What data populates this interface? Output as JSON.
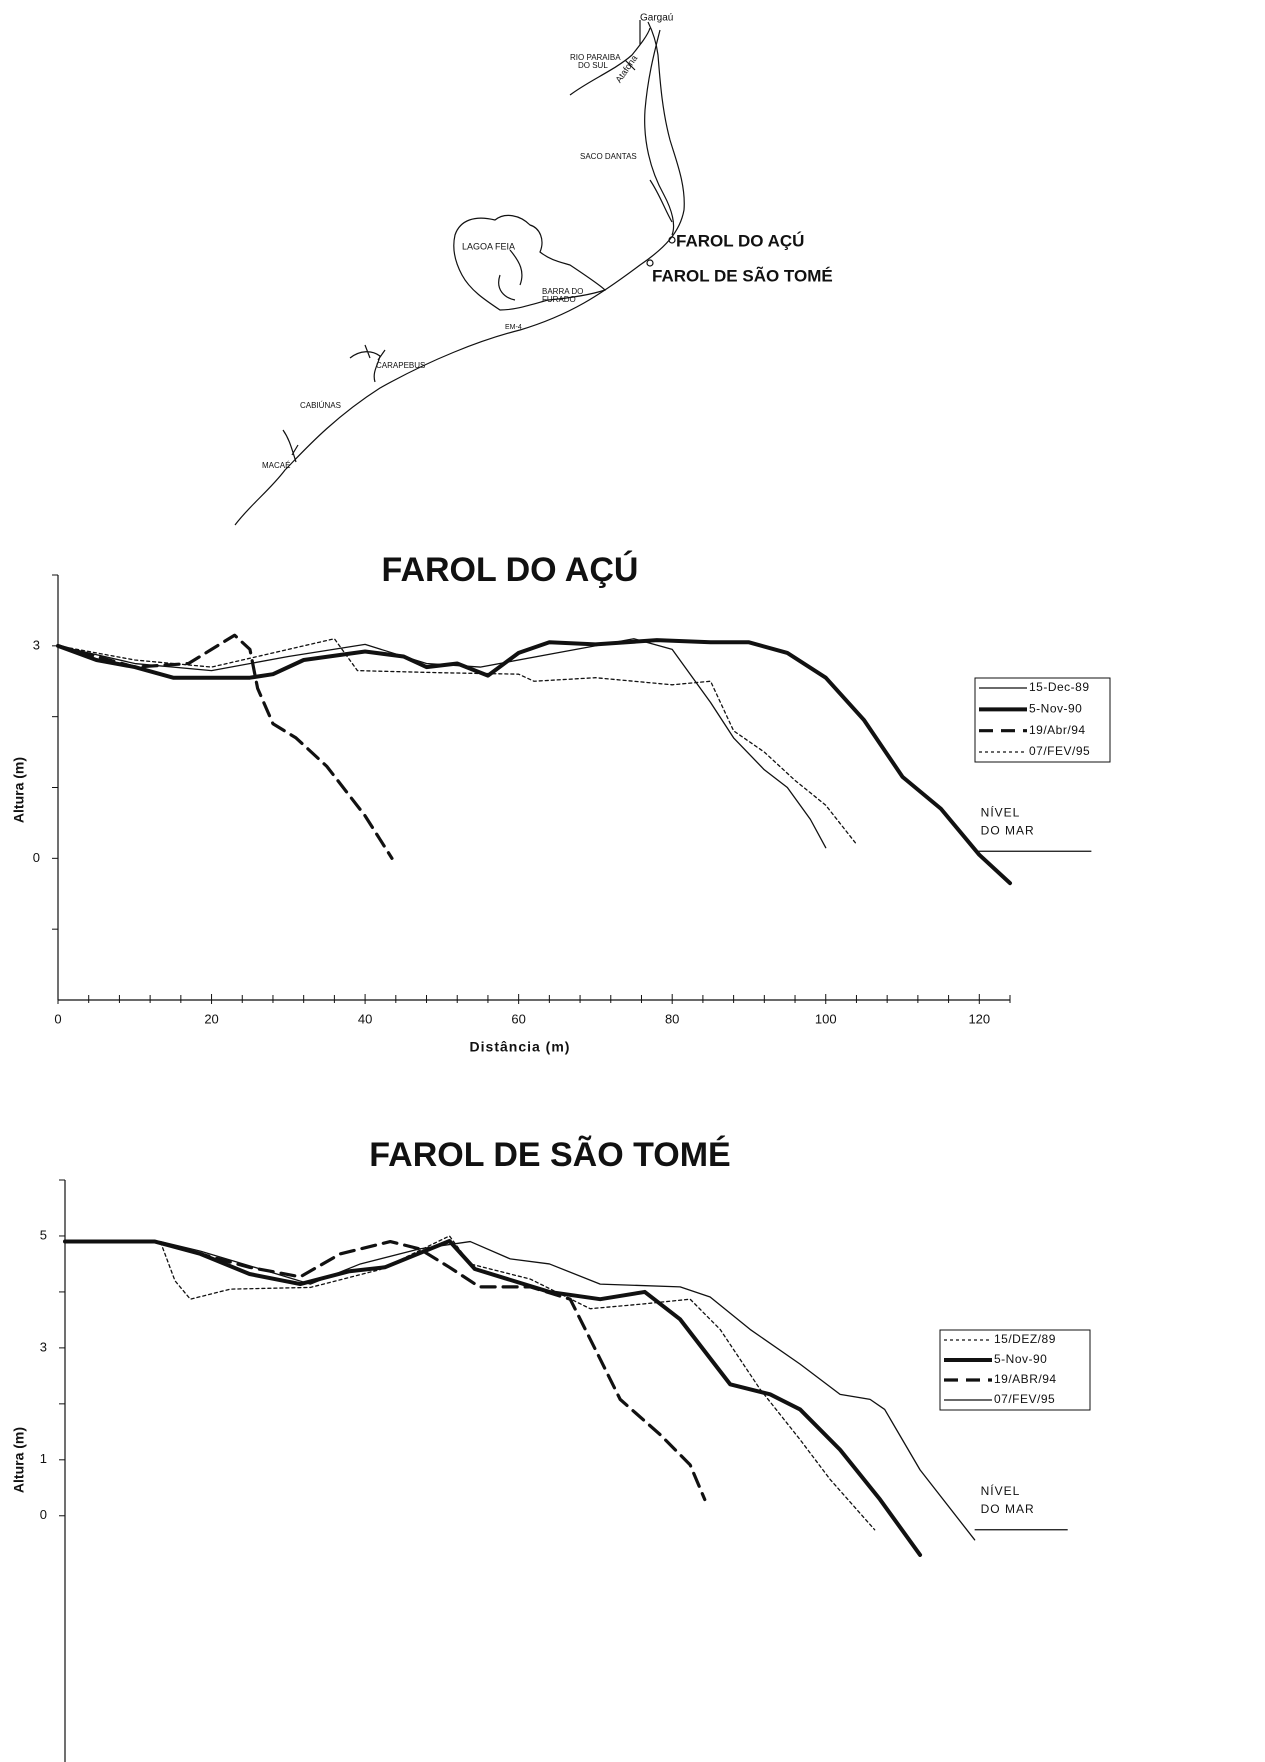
{
  "map": {
    "labels": [
      "Gargaú",
      "RIO PARAIBA",
      "DO SUL",
      "Atafona",
      "SACO DANTAS",
      "FAROL DO AÇÚ",
      "FAROL DE SÃO TOMÉ",
      "LAGOA FEIA",
      "BARRA DO",
      "FURADO",
      "EM-4",
      "CARAPEBUS",
      "CABIÚNAS",
      "MACAÉ"
    ]
  },
  "chart_data": [
    {
      "type": "line",
      "title": "FAROL DO AÇÚ",
      "x_label": "Distância (m)",
      "y_label": "Altura (m)",
      "xlim": [
        0,
        124
      ],
      "xticks": [
        0,
        20,
        40,
        60,
        80,
        100,
        120
      ],
      "xminor_ticks": [
        4,
        8,
        12,
        16,
        24,
        28,
        32,
        36,
        44,
        48,
        52,
        56,
        64,
        68,
        72,
        76,
        84,
        88,
        92,
        96,
        104,
        108,
        112,
        116,
        124
      ],
      "ylim": [
        -2,
        4
      ],
      "yticks": [
        0,
        3
      ],
      "yminor_ticks": [
        -1,
        1,
        2,
        4
      ],
      "sea_level": {
        "text": [
          "NÍVEL",
          "DO MAR"
        ],
        "y": 0.1,
        "x": [
          119.4,
          134.6
        ]
      },
      "series": [
        {
          "name": "15-Dec-89",
          "color": "#111",
          "line_style": "thin",
          "x": [
            0,
            10,
            20,
            30,
            40,
            48,
            55,
            65,
            75,
            80,
            85,
            88,
            92,
            95,
            98,
            100
          ],
          "values": [
            3,
            2.75,
            2.65,
            2.85,
            3.02,
            2.75,
            2.7,
            2.9,
            3.1,
            2.95,
            2.2,
            1.7,
            1.25,
            1.0,
            0.55,
            0.15
          ]
        },
        {
          "name": "5-Nov-90",
          "color": "#111",
          "line_style": "thick",
          "x": [
            0,
            5,
            10,
            15,
            25,
            28,
            32,
            40,
            45,
            48,
            52,
            56,
            60,
            64,
            70,
            78,
            85,
            90,
            95,
            100,
            105,
            110,
            115,
            120,
            124
          ],
          "values": [
            3,
            2.8,
            2.7,
            2.55,
            2.55,
            2.6,
            2.8,
            2.92,
            2.85,
            2.7,
            2.75,
            2.58,
            2.9,
            3.05,
            3.02,
            3.08,
            3.05,
            3.05,
            2.9,
            2.55,
            1.95,
            1.15,
            0.7,
            0.05,
            -0.35
          ]
        },
        {
          "name": "19/Abr/94",
          "color": "#111",
          "line_style": "dashed",
          "x": [
            0,
            10,
            17,
            20,
            23,
            25,
            26,
            28,
            31,
            35,
            40,
            43.5
          ],
          "values": [
            3,
            2.7,
            2.75,
            2.95,
            3.15,
            2.95,
            2.4,
            1.9,
            1.7,
            1.3,
            0.6,
            0
          ]
        },
        {
          "name": "07/FEV/95",
          "color": "#111",
          "line_style": "dotted",
          "x": [
            0,
            10,
            20,
            30,
            36,
            39,
            50,
            60,
            62,
            70,
            80,
            85,
            88,
            92,
            96,
            100,
            104
          ],
          "values": [
            3,
            2.8,
            2.7,
            2.95,
            3.1,
            2.65,
            2.62,
            2.6,
            2.5,
            2.55,
            2.45,
            2.5,
            1.8,
            1.5,
            1.1,
            0.75,
            0.2
          ]
        }
      ]
    },
    {
      "type": "line",
      "title": "FAROL DE SÃO TOMÉ",
      "y_label": "Altura (m)",
      "xlim": [
        0,
        132
      ],
      "ylim": [
        -4.4,
        6
      ],
      "yticks": [
        0,
        1,
        3,
        5
      ],
      "yminor_ticks": [
        2,
        4,
        6
      ],
      "sea_level": {
        "text": [
          "NÍVEL",
          "DO MAR"
        ],
        "y": -0.25,
        "x": [
          118.3,
          130.4
        ]
      },
      "series": [
        {
          "name": "15/DEZ/89",
          "color": "#111",
          "line_style": "dotted",
          "x": [
            0,
            12.4,
            14.3,
            16.3,
            21.5,
            31.9,
            41,
            50,
            52.7,
            60.5,
            68.3,
            74.8,
            81.3,
            85.2,
            90.4,
            95.6,
            99.5,
            105.3
          ],
          "values": [
            4.9,
            4.9,
            4.2,
            3.87,
            4.05,
            4.08,
            4.4,
            5.0,
            4.5,
            4.23,
            3.7,
            3.78,
            3.87,
            3.33,
            2.26,
            1.36,
            0.65,
            -0.25
          ]
        },
        {
          "name": "5-Nov-90",
          "color": "#111",
          "line_style": "thick",
          "x": [
            0,
            11.7,
            17.6,
            24,
            30.6,
            37,
            41.6,
            50,
            53.3,
            56.6,
            63,
            69.6,
            75.4,
            80,
            86.5,
            91.7,
            95.6,
            100.8,
            106,
            111.2
          ],
          "values": [
            4.9,
            4.9,
            4.68,
            4.32,
            4.14,
            4.37,
            4.44,
            4.91,
            4.41,
            4.27,
            4.0,
            3.87,
            4.0,
            3.51,
            2.35,
            2.17,
            1.9,
            1.18,
            0.29,
            -0.7
          ]
        },
        {
          "name": "19/ABR/94",
          "color": "#111",
          "line_style": "dashed",
          "x": [
            0,
            11.7,
            17.6,
            24,
            30.6,
            35.8,
            42.3,
            46.1,
            50,
            53.9,
            60.5,
            65.7,
            69.6,
            72.2,
            77.4,
            81.3,
            83.2
          ],
          "values": [
            4.9,
            4.9,
            4.68,
            4.44,
            4.27,
            4.68,
            4.9,
            4.77,
            4.44,
            4.09,
            4.09,
            3.87,
            2.8,
            2.08,
            1.45,
            0.91,
            0.29
          ]
        },
        {
          "name": "07/FEV/95",
          "color": "#111",
          "line_style": "thin",
          "x": [
            0,
            12.4,
            17.6,
            25.4,
            31.9,
            38.4,
            46.1,
            52.7,
            57.9,
            63,
            69.6,
            80,
            83.9,
            89.1,
            95.6,
            100.8,
            104.7,
            106.6,
            111.2,
            118.3
          ],
          "values": [
            4.9,
            4.9,
            4.73,
            4.41,
            4.14,
            4.5,
            4.77,
            4.9,
            4.59,
            4.5,
            4.14,
            4.09,
            3.91,
            3.33,
            2.71,
            2.17,
            2.08,
            1.9,
            0.82,
            -0.43
          ]
        }
      ]
    }
  ]
}
